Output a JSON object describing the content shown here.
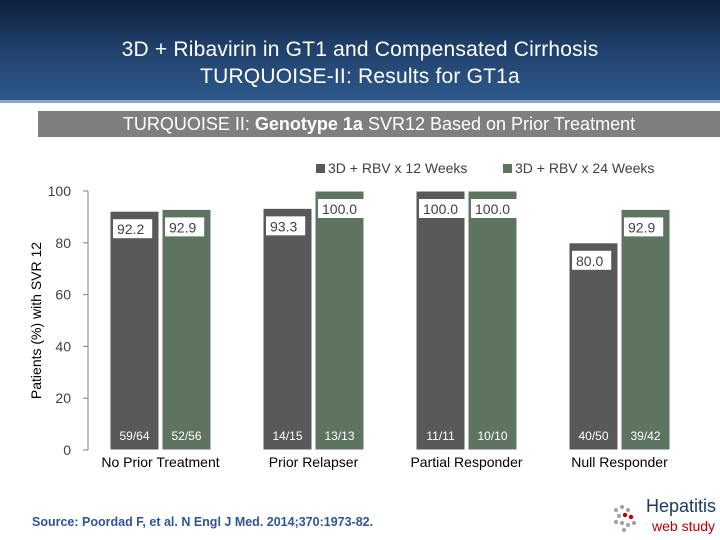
{
  "header": {
    "title_line1": "3D + Ribavirin in GT1 and Compensated Cirrhosis",
    "title_line2": "TURQUOISE-II: Results for GT1a"
  },
  "subtitle": {
    "prefix": "TURQUOISE II: ",
    "bold": "Genotype 1a",
    "suffix": " SVR12 Based on Prior Treatment"
  },
  "chart_data": {
    "type": "bar",
    "ylabel": "Patients (%) with SVR 12",
    "ylim": [
      0,
      100
    ],
    "yticks": [
      0,
      20,
      40,
      60,
      80,
      100
    ],
    "grid": false,
    "legend_position": "top-right",
    "categories": [
      "No Prior Treatment",
      "Prior Relapser",
      "Partial Responder",
      "Null Responder"
    ],
    "series": [
      {
        "name": "3D + RBV x 12 Weeks",
        "color": "#595959",
        "values": [
          92.2,
          93.3,
          100.0,
          80.0
        ],
        "value_labels": [
          "92.2",
          "93.3",
          "100.0",
          "80.0"
        ],
        "counts": [
          "59/64",
          "14/15",
          "11/11",
          "40/50"
        ]
      },
      {
        "name": "3D + RBV x 24 Weeks",
        "color": "#5e7460",
        "values": [
          92.9,
          100.0,
          100.0,
          92.9
        ],
        "value_labels": [
          "92.9",
          "100.0",
          "100.0",
          "92.9"
        ],
        "counts": [
          "52/56",
          "13/13",
          "10/10",
          "39/42"
        ]
      }
    ]
  },
  "footer": {
    "source": "Source: Poordad F, et al. N Engl J Med. 2014;370:1973-82.",
    "logo_word1": "Hepatitis",
    "logo_word2": "web study"
  }
}
